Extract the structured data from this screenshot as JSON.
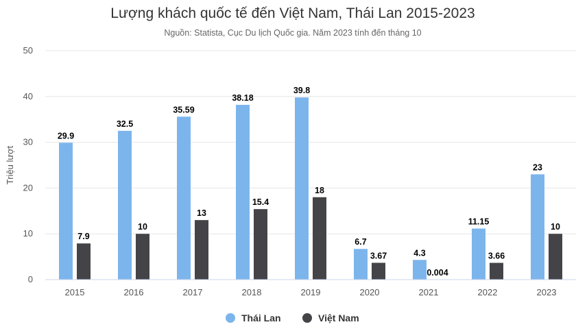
{
  "chart_data": {
    "type": "bar",
    "title": "Lượng khách quốc tế đến Việt Nam, Thái Lan 2015-2023",
    "subtitle": "Nguồn: Statista, Cục Du lịch Quốc gia. Năm 2023 tính đến tháng 10",
    "xlabel": "",
    "ylabel": "Triệu lượt",
    "ylim": [
      0,
      50
    ],
    "yticks": [
      0,
      10,
      20,
      30,
      40,
      50
    ],
    "grid": true,
    "legend_position": "bottom-center",
    "categories": [
      "2015",
      "2016",
      "2017",
      "2018",
      "2019",
      "2020",
      "2021",
      "2022",
      "2023"
    ],
    "series": [
      {
        "name": "Thái Lan",
        "color": "#7cb5ec",
        "values": [
          29.9,
          32.5,
          35.59,
          38.18,
          39.8,
          6.7,
          4.3,
          11.15,
          23
        ],
        "labels": [
          "29.9",
          "32.5",
          "35.59",
          "38.18",
          "39.8",
          "6.7",
          "4.3",
          "11.15",
          "23"
        ]
      },
      {
        "name": "Việt Nam",
        "color": "#434348",
        "values": [
          7.9,
          10,
          13,
          15.4,
          18,
          3.67,
          0.004,
          3.66,
          10
        ],
        "labels": [
          "7.9",
          "10",
          "13",
          "15.4",
          "18",
          "3.67",
          "0.004",
          "3.66",
          "10"
        ]
      }
    ]
  }
}
